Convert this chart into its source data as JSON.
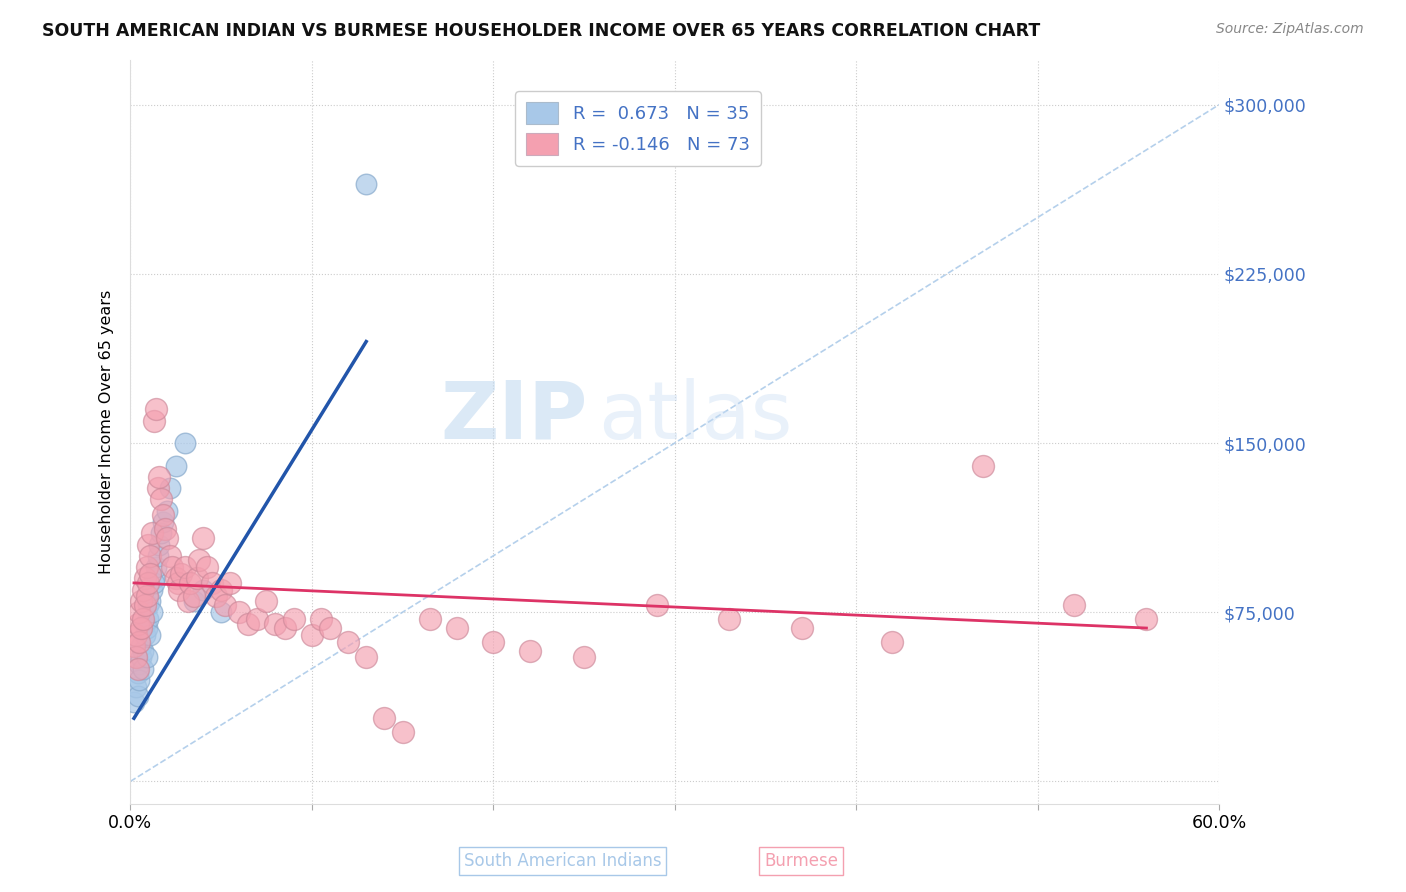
{
  "title": "SOUTH AMERICAN INDIAN VS BURMESE HOUSEHOLDER INCOME OVER 65 YEARS CORRELATION CHART",
  "source": "Source: ZipAtlas.com",
  "ylabel": "Householder Income Over 65 years",
  "xlim": [
    0.0,
    0.6
  ],
  "ylim": [
    -10000,
    320000
  ],
  "yticks": [
    0,
    75000,
    150000,
    225000,
    300000
  ],
  "ytick_labels": [
    "",
    "$75,000",
    "$150,000",
    "$225,000",
    "$300,000"
  ],
  "xtick_positions": [
    0.0,
    0.1,
    0.2,
    0.3,
    0.4,
    0.5,
    0.6
  ],
  "xtick_labels": [
    "0.0%",
    "",
    "",
    "",
    "",
    "",
    "60.0%"
  ],
  "blue_color": "#a8c8e8",
  "pink_color": "#f4a0b0",
  "blue_line_color": "#2255aa",
  "pink_line_color": "#dd3366",
  "diag_line_color": "#a8c8e8",
  "legend_blue_label_r": "R =  0.673",
  "legend_blue_label_n": "N = 35",
  "legend_pink_label_r": "R = -0.146",
  "legend_pink_label_n": "N = 73",
  "watermark_zip": "ZIP",
  "watermark_atlas": "atlas",
  "blue_scatter_x": [
    0.002,
    0.003,
    0.004,
    0.004,
    0.005,
    0.005,
    0.006,
    0.006,
    0.007,
    0.007,
    0.008,
    0.008,
    0.009,
    0.009,
    0.01,
    0.01,
    0.011,
    0.011,
    0.012,
    0.012,
    0.013,
    0.013,
    0.014,
    0.015,
    0.016,
    0.017,
    0.018,
    0.02,
    0.022,
    0.025,
    0.03,
    0.035,
    0.04,
    0.05,
    0.13
  ],
  "blue_scatter_y": [
    35000,
    42000,
    48000,
    38000,
    52000,
    45000,
    55000,
    60000,
    58000,
    50000,
    65000,
    70000,
    68000,
    55000,
    72000,
    78000,
    80000,
    65000,
    75000,
    85000,
    90000,
    88000,
    95000,
    100000,
    105000,
    110000,
    115000,
    120000,
    130000,
    140000,
    150000,
    80000,
    85000,
    75000,
    265000
  ],
  "pink_scatter_x": [
    0.002,
    0.003,
    0.003,
    0.004,
    0.004,
    0.005,
    0.005,
    0.006,
    0.006,
    0.007,
    0.007,
    0.008,
    0.008,
    0.009,
    0.009,
    0.01,
    0.01,
    0.011,
    0.011,
    0.012,
    0.013,
    0.014,
    0.015,
    0.016,
    0.017,
    0.018,
    0.019,
    0.02,
    0.022,
    0.023,
    0.025,
    0.026,
    0.027,
    0.028,
    0.03,
    0.032,
    0.033,
    0.035,
    0.037,
    0.038,
    0.04,
    0.042,
    0.045,
    0.047,
    0.05,
    0.052,
    0.055,
    0.06,
    0.065,
    0.07,
    0.075,
    0.08,
    0.085,
    0.09,
    0.1,
    0.105,
    0.11,
    0.12,
    0.13,
    0.14,
    0.15,
    0.165,
    0.18,
    0.2,
    0.22,
    0.25,
    0.29,
    0.33,
    0.37,
    0.42,
    0.47,
    0.52,
    0.56
  ],
  "pink_scatter_y": [
    60000,
    65000,
    55000,
    70000,
    50000,
    75000,
    62000,
    80000,
    68000,
    72000,
    85000,
    90000,
    78000,
    82000,
    95000,
    88000,
    105000,
    100000,
    92000,
    110000,
    160000,
    165000,
    130000,
    135000,
    125000,
    118000,
    112000,
    108000,
    100000,
    95000,
    90000,
    88000,
    85000,
    92000,
    95000,
    80000,
    88000,
    82000,
    90000,
    98000,
    108000,
    95000,
    88000,
    82000,
    85000,
    78000,
    88000,
    75000,
    70000,
    72000,
    80000,
    70000,
    68000,
    72000,
    65000,
    72000,
    68000,
    62000,
    55000,
    28000,
    22000,
    72000,
    68000,
    62000,
    58000,
    55000,
    78000,
    72000,
    68000,
    62000,
    140000,
    78000,
    72000
  ]
}
